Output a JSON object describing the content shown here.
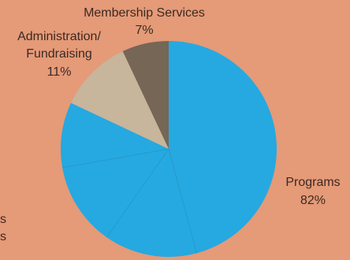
{
  "colors": {
    "background": "#e59a78",
    "programs": "#25a9e0",
    "administration": "#c7b59c",
    "membership": "#766656",
    "divider": "#2a95c6"
  },
  "chart_data": {
    "type": "pie",
    "title": "",
    "slices": [
      {
        "label": "Programs",
        "value": 82,
        "value_label": "82%",
        "color": "#25a9e0"
      },
      {
        "label": "Administration/ Fundraising",
        "label_lines": [
          "Administration/",
          "Fundraising"
        ],
        "value": 11,
        "value_label": "11%",
        "color": "#c7b59c"
      },
      {
        "label": "Membership Services",
        "label_lines": [
          "Membership Services"
        ],
        "value": 7,
        "value_label": "7%",
        "color": "#766656"
      }
    ],
    "programs_label_lines": [
      "Programs"
    ],
    "cropped_label_fragments": [
      "s",
      "s"
    ]
  }
}
